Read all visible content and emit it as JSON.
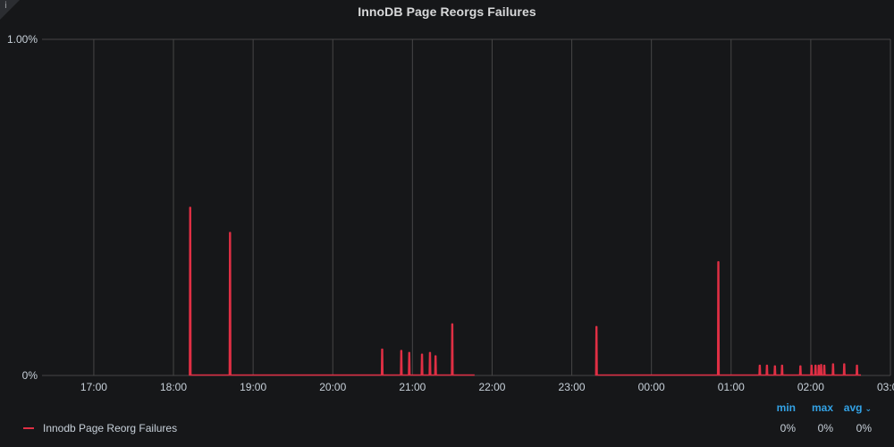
{
  "panel": {
    "title": "InnoDB Page Reorgs Failures",
    "info_icon": "info-icon",
    "info_glyph": "i"
  },
  "colors": {
    "background": "#161719",
    "grid": "#464646",
    "series": "#e02f44",
    "legend_header": "#33a2e5"
  },
  "legend": {
    "headers": {
      "min": "min",
      "max": "max",
      "avg": "avg"
    },
    "series": [
      {
        "name": "Innodb Page Reorg Failures",
        "min": "0%",
        "max": "0%",
        "avg": "0%"
      }
    ]
  },
  "chart_data": {
    "type": "line",
    "title": "InnoDB Page Reorgs Failures",
    "xlabel": "",
    "ylabel": "",
    "x_unit": "hours",
    "xlim": [
      16.35,
      27.0
    ],
    "ylim": [
      0,
      1.0
    ],
    "y_ticks": [
      {
        "value": 0,
        "label": "0%"
      },
      {
        "value": 1.0,
        "label": "1.00%"
      }
    ],
    "x_ticks": [
      {
        "value": 17,
        "label": "17:00"
      },
      {
        "value": 18,
        "label": "18:00"
      },
      {
        "value": 19,
        "label": "19:00"
      },
      {
        "value": 20,
        "label": "20:00"
      },
      {
        "value": 21,
        "label": "21:00"
      },
      {
        "value": 22,
        "label": "22:00"
      },
      {
        "value": 23,
        "label": "23:00"
      },
      {
        "value": 24,
        "label": "00:00"
      },
      {
        "value": 25,
        "label": "01:00"
      },
      {
        "value": 26,
        "label": "02:00"
      },
      {
        "value": 27,
        "label": "03:00"
      }
    ],
    "grid": true,
    "legend_placement": "bottom-left",
    "series": [
      {
        "name": "Innodb Page Reorg Failures",
        "segments": [
          {
            "start": 18.2,
            "end": 21.78
          },
          {
            "start": 23.3,
            "end": 26.63
          }
        ],
        "spikes": [
          {
            "x": 18.21,
            "y": 0.5
          },
          {
            "x": 18.71,
            "y": 0.425
          },
          {
            "x": 20.62,
            "y": 0.078
          },
          {
            "x": 20.86,
            "y": 0.074
          },
          {
            "x": 20.96,
            "y": 0.068
          },
          {
            "x": 21.12,
            "y": 0.063
          },
          {
            "x": 21.22,
            "y": 0.068
          },
          {
            "x": 21.29,
            "y": 0.058
          },
          {
            "x": 21.5,
            "y": 0.153
          },
          {
            "x": 23.31,
            "y": 0.145
          },
          {
            "x": 24.84,
            "y": 0.338
          },
          {
            "x": 25.36,
            "y": 0.03
          },
          {
            "x": 25.45,
            "y": 0.03
          },
          {
            "x": 25.55,
            "y": 0.028
          },
          {
            "x": 25.64,
            "y": 0.03
          },
          {
            "x": 25.87,
            "y": 0.028
          },
          {
            "x": 26.01,
            "y": 0.03
          },
          {
            "x": 26.06,
            "y": 0.03
          },
          {
            "x": 26.1,
            "y": 0.03
          },
          {
            "x": 26.13,
            "y": 0.032
          },
          {
            "x": 26.17,
            "y": 0.03
          },
          {
            "x": 26.28,
            "y": 0.034
          },
          {
            "x": 26.42,
            "y": 0.034
          },
          {
            "x": 26.58,
            "y": 0.03
          }
        ]
      }
    ]
  }
}
